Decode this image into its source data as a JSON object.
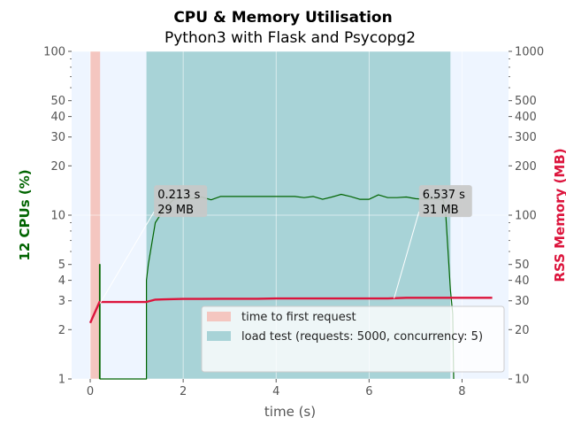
{
  "chart_data": {
    "type": "line",
    "title": "CPU & Memory Utilisation",
    "subtitle": "Python3 with Flask and Psycopg2",
    "xlabel": "time (s)",
    "ylabel_left": "12 CPUs (%)",
    "ylabel_right": "RSS Memory (MB)",
    "xlim": [
      -0.4,
      9.0
    ],
    "ylim_left": [
      1,
      100
    ],
    "ylim_right": [
      10,
      1000
    ],
    "y_scale": "log",
    "grid": true,
    "legend_position": "lower-right",
    "x_ticks": [
      0,
      2,
      4,
      6,
      8
    ],
    "left_ticks": [
      {
        "value": 1,
        "label": "1"
      },
      {
        "value": 2,
        "label": "2"
      },
      {
        "value": 3,
        "label": "3"
      },
      {
        "value": 4,
        "label": "4"
      },
      {
        "value": 5,
        "label": "5"
      },
      {
        "value": 10,
        "label": "10"
      },
      {
        "value": 20,
        "label": "20"
      },
      {
        "value": 30,
        "label": "30"
      },
      {
        "value": 40,
        "label": "40"
      },
      {
        "value": 50,
        "label": "50"
      },
      {
        "value": 100,
        "label": "100"
      }
    ],
    "right_ticks": [
      {
        "value": 10,
        "label": "10"
      },
      {
        "value": 20,
        "label": "20"
      },
      {
        "value": 30,
        "label": "30"
      },
      {
        "value": 40,
        "label": "40"
      },
      {
        "value": 50,
        "label": "50"
      },
      {
        "value": 100,
        "label": "100"
      },
      {
        "value": 200,
        "label": "200"
      },
      {
        "value": 300,
        "label": "300"
      },
      {
        "value": 400,
        "label": "400"
      },
      {
        "value": 500,
        "label": "500"
      },
      {
        "value": 1000,
        "label": "1000"
      }
    ],
    "spans": [
      {
        "name": "time to first request",
        "x0": 0.0,
        "x1": 0.213,
        "color": "#f4c6c0"
      },
      {
        "name": "load test (requests: 5000, concurrency: 5)",
        "x0": 1.21,
        "x1": 7.75,
        "color": "#a8d3d7"
      }
    ],
    "series": [
      {
        "axis": "left",
        "color": "#006400",
        "x": [
          0.2,
          0.2,
          0.21,
          0.21,
          1.21,
          1.21,
          1.25,
          1.4,
          1.6,
          1.8,
          2.0,
          2.2,
          2.4,
          2.6,
          2.8,
          3.0,
          3.2,
          3.4,
          3.6,
          3.8,
          4.0,
          4.2,
          4.4,
          4.6,
          4.8,
          5.0,
          5.2,
          5.4,
          5.6,
          5.8,
          6.0,
          6.2,
          6.4,
          6.6,
          6.8,
          7.0,
          7.2,
          7.4,
          7.6,
          7.65,
          7.75,
          7.8,
          7.82
        ],
        "y": [
          1,
          5,
          5,
          1,
          1,
          4,
          5,
          9,
          11,
          12.5,
          12.8,
          12.6,
          12.9,
          12.4,
          13,
          13,
          13,
          13,
          13,
          13,
          13,
          13,
          13,
          12.8,
          13,
          12.5,
          12.9,
          13.4,
          13,
          12.5,
          12.5,
          13.3,
          12.8,
          12.8,
          12.9,
          12.6,
          12.5,
          12.6,
          12.4,
          10,
          3.5,
          2.5,
          1
        ]
      },
      {
        "axis": "right",
        "color": "#dc143c",
        "x": [
          0.0,
          0.2,
          0.4,
          0.8,
          1.2,
          1.4,
          1.6,
          2.0,
          2.4,
          2.8,
          3.2,
          3.6,
          4.0,
          4.4,
          4.8,
          5.2,
          5.6,
          6.0,
          6.4,
          6.8,
          7.2,
          7.6,
          8.0,
          8.4,
          8.65
        ],
        "y": [
          22,
          29.5,
          29.5,
          29.5,
          29.5,
          30.5,
          30.6,
          30.8,
          30.8,
          30.9,
          30.9,
          30.9,
          31,
          31,
          31,
          31,
          31,
          31,
          31,
          31.3,
          31.3,
          31.3,
          31.3,
          31.3,
          31.3
        ]
      }
    ],
    "annotations": [
      {
        "x": 0.213,
        "mem": 29,
        "box_x": 1.45,
        "box_cpu": 12.5,
        "lines": [
          "0.213 s",
          "29 MB"
        ]
      },
      {
        "x": 6.537,
        "mem": 31,
        "box_x": 7.15,
        "box_cpu": 12.5,
        "lines": [
          "6.537 s",
          "31 MB"
        ]
      }
    ],
    "legend": [
      {
        "label": "time to first request",
        "color": "#f4c6c0"
      },
      {
        "label": "load test (requests: 5000, concurrency: 5)",
        "color": "#a8d3d7"
      }
    ]
  }
}
